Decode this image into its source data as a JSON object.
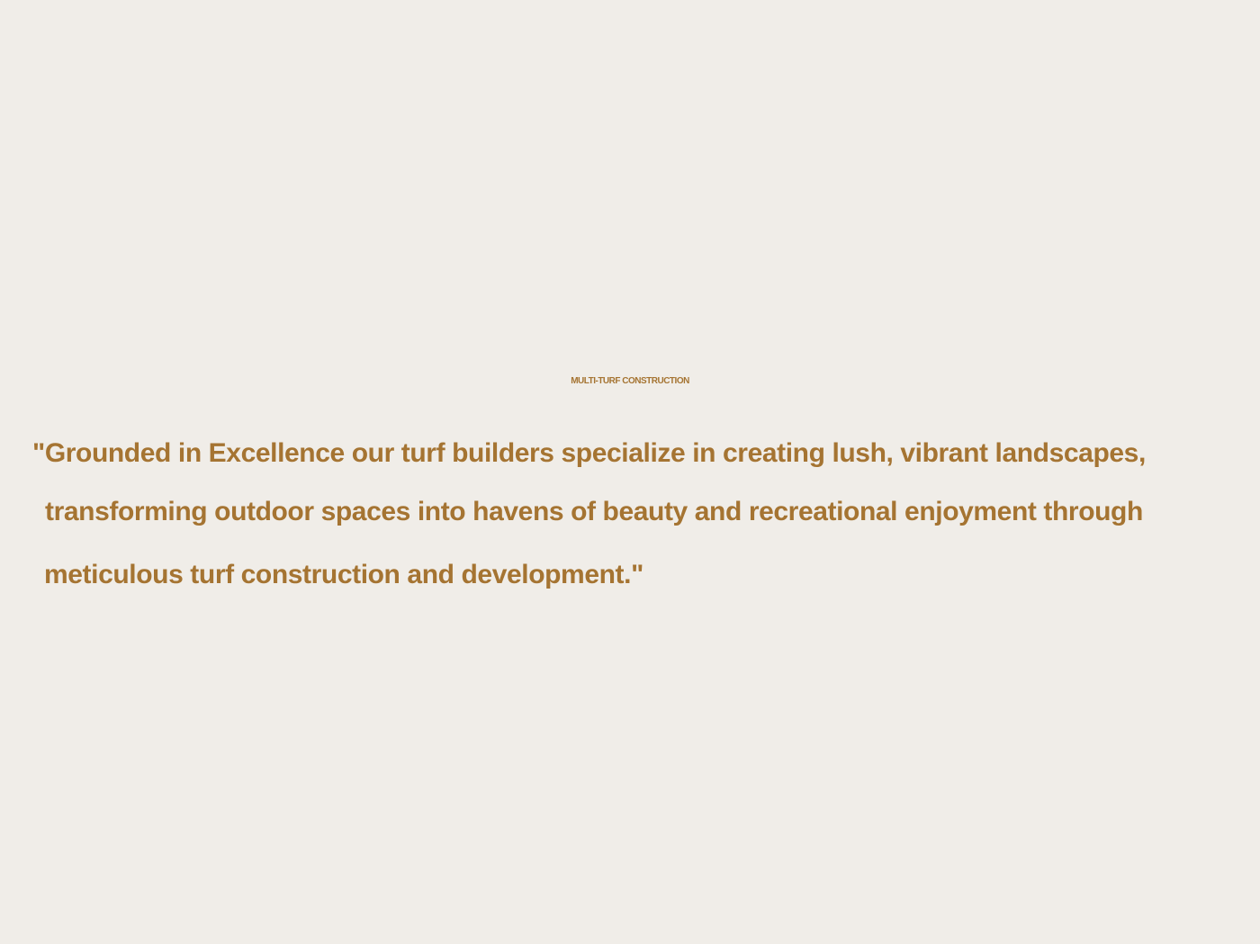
{
  "heading": {
    "title": "MULTI-TURF CONSTRUCTION"
  },
  "quote": {
    "lines": [
      "\"Grounded in Excellence our turf builders specialize in creating lush, vibrant landscapes,",
      "transforming outdoor spaces into havens of beauty and recreational enjoyment through",
      "meticulous turf construction and development.\""
    ]
  },
  "colors": {
    "background": "#f0ede8",
    "accent": "#a57432"
  }
}
